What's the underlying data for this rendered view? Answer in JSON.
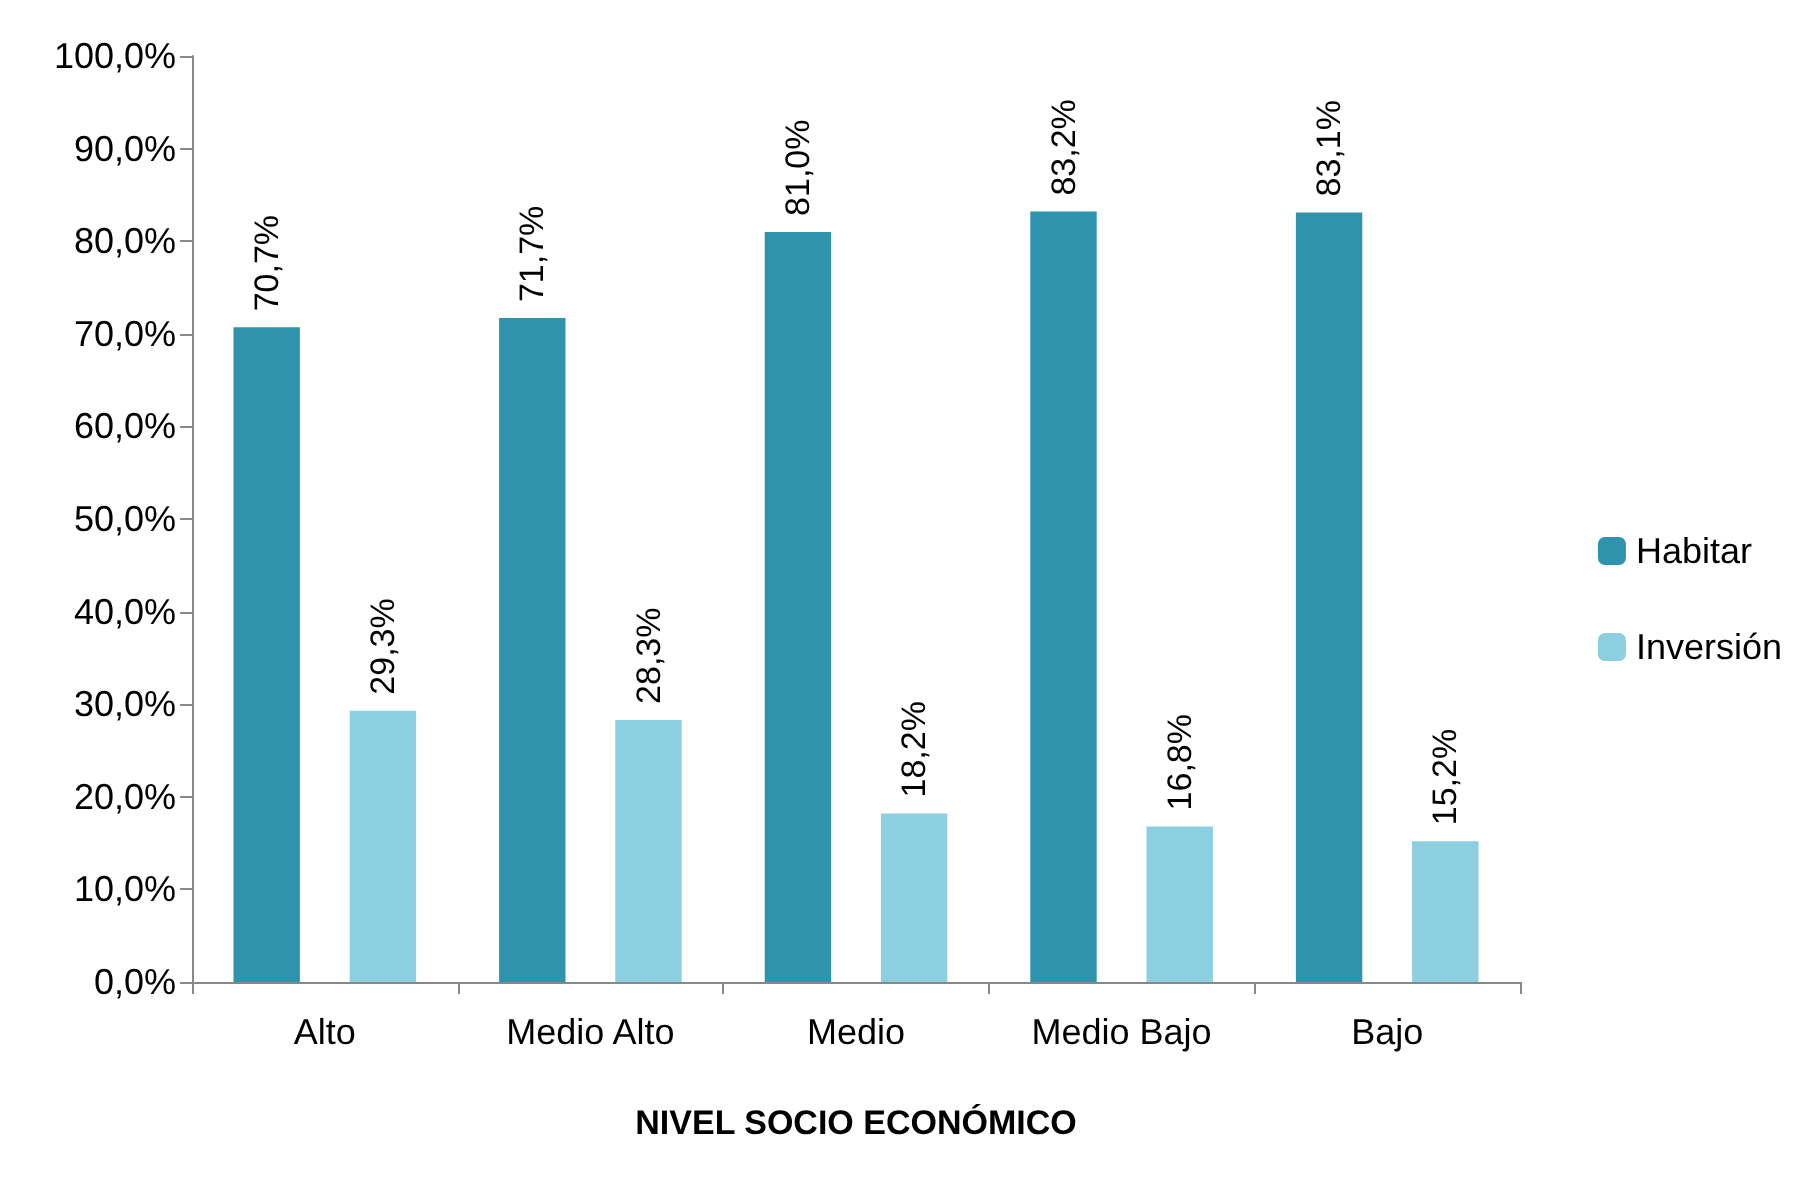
{
  "chart_data": {
    "type": "bar",
    "xlabel": "NIVEL SOCIO ECONÓMICO",
    "categories": [
      "Alto",
      "Medio Alto",
      "Medio",
      "Medio Bajo",
      "Bajo"
    ],
    "series": [
      {
        "name": "Habitar",
        "color": "#2f93ad",
        "values": [
          70.7,
          71.7,
          81.0,
          83.2,
          83.1
        ],
        "value_labels": [
          "70,7%",
          "71,7%",
          "81,0%",
          "83,2%",
          "83,1%"
        ]
      },
      {
        "name": "Inversión",
        "color": "#8ccfe0",
        "values": [
          29.3,
          28.3,
          18.2,
          16.8,
          15.2
        ],
        "value_labels": [
          "29,3%",
          "28,3%",
          "18,2%",
          "16,8%",
          "15,2%"
        ]
      }
    ],
    "ylim": [
      0,
      100
    ],
    "yticks": [
      {
        "value": 0,
        "label": "0,0%"
      },
      {
        "value": 10,
        "label": "10,0%"
      },
      {
        "value": 20,
        "label": "20,0%"
      },
      {
        "value": 30,
        "label": "30,0%"
      },
      {
        "value": 40,
        "label": "40,0%"
      },
      {
        "value": 50,
        "label": "50,0%"
      },
      {
        "value": 60,
        "label": "60,0%"
      },
      {
        "value": 70,
        "label": "70,0%"
      },
      {
        "value": 80,
        "label": "80,0%"
      },
      {
        "value": 90,
        "label": "90,0%"
      },
      {
        "value": 100,
        "label": "100,0%"
      }
    ],
    "grid": false,
    "legend": "right"
  }
}
